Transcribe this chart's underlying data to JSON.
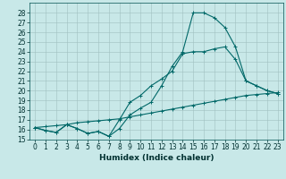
{
  "xlabel": "Humidex (Indice chaleur)",
  "background_color": "#c8e8e8",
  "line_color": "#006868",
  "xlim": [
    -0.5,
    23.5
  ],
  "ylim": [
    15,
    29
  ],
  "yticks": [
    15,
    16,
    17,
    18,
    19,
    20,
    21,
    22,
    23,
    24,
    25,
    26,
    27,
    28
  ],
  "xticks": [
    0,
    1,
    2,
    3,
    4,
    5,
    6,
    7,
    8,
    9,
    10,
    11,
    12,
    13,
    14,
    15,
    16,
    17,
    18,
    19,
    20,
    21,
    22,
    23
  ],
  "line1_x": [
    0,
    1,
    2,
    3,
    4,
    5,
    6,
    7,
    8,
    9,
    10,
    11,
    12,
    13,
    14,
    15,
    16,
    17,
    18,
    19,
    20,
    21,
    22,
    23
  ],
  "line1_y": [
    16.2,
    15.9,
    15.7,
    16.5,
    16.1,
    15.6,
    15.8,
    15.3,
    16.1,
    17.5,
    18.2,
    18.8,
    20.5,
    22.5,
    24.0,
    28.0,
    28.0,
    27.5,
    26.5,
    24.5,
    21.0,
    20.5,
    20.0,
    19.7
  ],
  "line2_x": [
    0,
    1,
    2,
    3,
    4,
    5,
    6,
    7,
    8,
    9,
    10,
    11,
    12,
    13,
    14,
    15,
    16,
    17,
    18,
    19,
    20,
    21,
    22,
    23
  ],
  "line2_y": [
    16.2,
    15.9,
    15.7,
    16.5,
    16.1,
    15.6,
    15.8,
    15.3,
    17.0,
    18.8,
    19.5,
    20.5,
    21.2,
    22.0,
    23.8,
    24.0,
    24.0,
    24.3,
    24.5,
    23.2,
    21.0,
    20.5,
    20.0,
    19.7
  ],
  "line3_x": [
    0,
    1,
    2,
    3,
    4,
    5,
    6,
    7,
    8,
    9,
    10,
    11,
    12,
    13,
    14,
    15,
    16,
    17,
    18,
    19,
    20,
    21,
    22,
    23
  ],
  "line3_y": [
    16.2,
    16.3,
    16.4,
    16.5,
    16.7,
    16.8,
    16.9,
    17.0,
    17.1,
    17.3,
    17.5,
    17.7,
    17.9,
    18.1,
    18.3,
    18.5,
    18.7,
    18.9,
    19.1,
    19.3,
    19.5,
    19.6,
    19.7,
    19.8
  ]
}
